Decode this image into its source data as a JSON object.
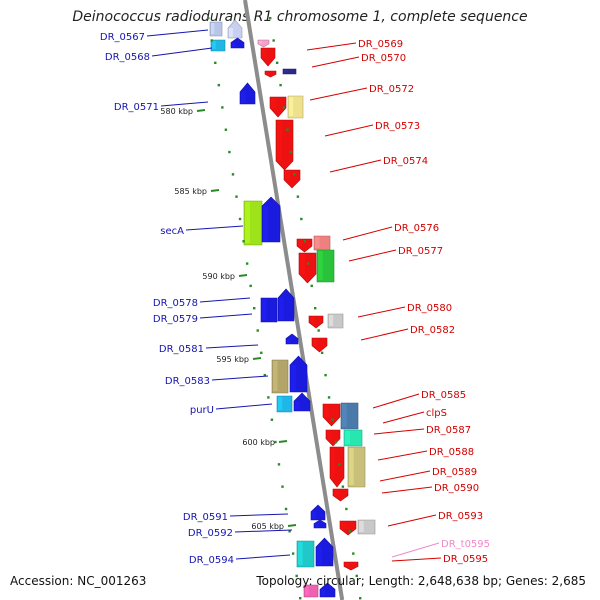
{
  "title": "Deinococcus radiodurans R1 chromosome 1, complete sequence",
  "accession_text": "Accession: NC_001263",
  "topology_text": "Topology: circular; Length: 2,648,638 bp; Genes: 2,685",
  "colors": {
    "reverse_label": "#1515b0",
    "forward_label": "#d40000",
    "rna_label": "#f08ac8",
    "backbone": "#8c8c8c",
    "tick": "#2a8a2a"
  },
  "ticks": [
    "580 kbp",
    "585 kbp",
    "590 kbp",
    "595 kbp",
    "600 kbp",
    "605 kbp"
  ],
  "reverse_strand_labels": [
    "DR_0567",
    "DR_0568",
    "DR_0571",
    "secA",
    "DR_0578",
    "DR_0579",
    "DR_0581",
    "DR_0583",
    "purU",
    "DR_0591",
    "DR_0592",
    "DR_0594"
  ],
  "forward_strand_labels": [
    "DR_0569",
    "DR_0570",
    "DR_0572",
    "DR_0573",
    "DR_0574",
    "DR_0576",
    "DR_0577",
    "DR_0580",
    "DR_0582",
    "DR_0585",
    "clpS",
    "DR_0587",
    "DR_0588",
    "DR_0589",
    "DR_0590",
    "DR_0593",
    "DR_t0595",
    "DR_0595"
  ],
  "rna_labels": [
    "DR_t0595"
  ]
}
